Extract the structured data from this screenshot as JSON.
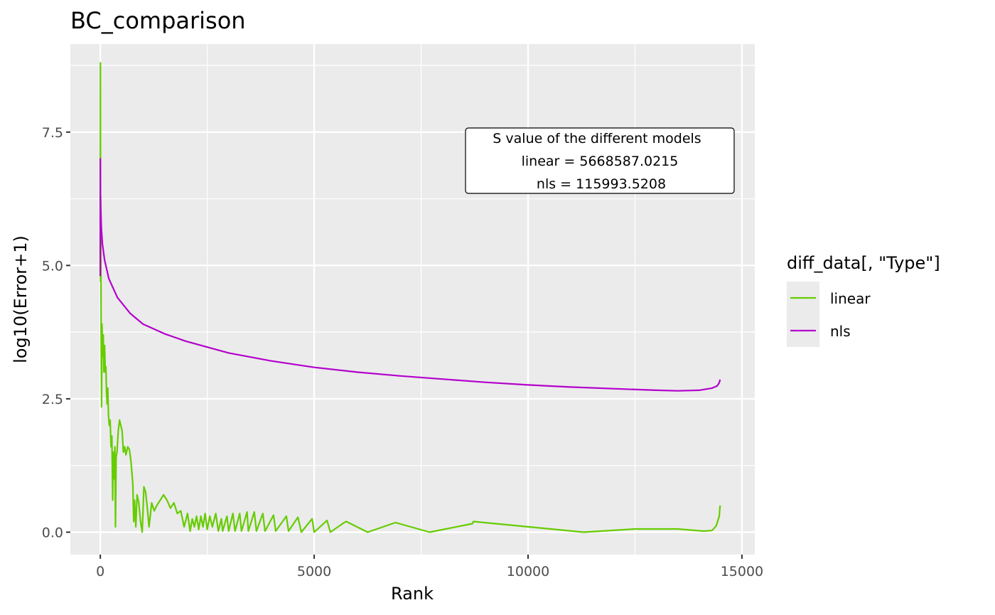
{
  "chart_data": {
    "type": "line",
    "title": "BC_comparison",
    "xlabel": "Rank",
    "ylabel": "log10(Error+1)",
    "xlim": [
      -700,
      15300
    ],
    "ylim": [
      -0.42,
      9.15
    ],
    "x_ticks": [
      0,
      5000,
      10000,
      15000
    ],
    "x_tick_labels": [
      "0",
      "5000",
      "10000",
      "15000"
    ],
    "y_ticks": [
      0.0,
      2.5,
      5.0,
      7.5
    ],
    "y_tick_labels": [
      "0.0",
      "2.5",
      "5.0",
      "7.5"
    ],
    "grid": true,
    "legend": {
      "title": "diff_data[, \"Type\"]",
      "position": "right"
    },
    "annotation": {
      "lines": [
        "S  value of the different models",
        "linear = 5668587.0215",
        "nls = 115993.5208"
      ]
    },
    "series": [
      {
        "name": "linear",
        "color": "#66CC00",
        "points": [
          [
            0,
            4.8
          ],
          [
            3,
            8.8
          ],
          [
            6,
            4.7
          ],
          [
            10,
            6.3
          ],
          [
            20,
            3.6
          ],
          [
            30,
            2.35
          ],
          [
            40,
            3.9
          ],
          [
            55,
            3.3
          ],
          [
            70,
            3.7
          ],
          [
            85,
            3.0
          ],
          [
            100,
            3.5
          ],
          [
            115,
            3.0
          ],
          [
            130,
            3.1
          ],
          [
            145,
            2.6
          ],
          [
            160,
            2.4
          ],
          [
            175,
            2.7
          ],
          [
            190,
            2.2
          ],
          [
            210,
            2.0
          ],
          [
            230,
            2.1
          ],
          [
            250,
            1.6
          ],
          [
            270,
            1.8
          ],
          [
            290,
            0.6
          ],
          [
            300,
            1.5
          ],
          [
            320,
            1.0
          ],
          [
            340,
            1.6
          ],
          [
            355,
            0.1
          ],
          [
            370,
            1.4
          ],
          [
            390,
            1.5
          ],
          [
            420,
            1.9
          ],
          [
            450,
            2.1
          ],
          [
            480,
            2.0
          ],
          [
            510,
            1.9
          ],
          [
            540,
            1.5
          ],
          [
            570,
            1.6
          ],
          [
            600,
            1.45
          ],
          [
            640,
            1.6
          ],
          [
            680,
            1.55
          ],
          [
            720,
            1.3
          ],
          [
            760,
            0.9
          ],
          [
            780,
            0.2
          ],
          [
            800,
            0.6
          ],
          [
            830,
            0.1
          ],
          [
            860,
            0.7
          ],
          [
            900,
            0.55
          ],
          [
            940,
            0.2
          ],
          [
            980,
            0.0
          ],
          [
            1020,
            0.85
          ],
          [
            1060,
            0.75
          ],
          [
            1100,
            0.45
          ],
          [
            1140,
            0.1
          ],
          [
            1200,
            0.55
          ],
          [
            1260,
            0.4
          ],
          [
            1320,
            0.5
          ],
          [
            1400,
            0.6
          ],
          [
            1480,
            0.7
          ],
          [
            1560,
            0.6
          ],
          [
            1640,
            0.45
          ],
          [
            1720,
            0.55
          ],
          [
            1800,
            0.35
          ],
          [
            1880,
            0.4
          ],
          [
            1960,
            0.1
          ],
          [
            2040,
            0.35
          ],
          [
            2100,
            0.02
          ],
          [
            2150,
            0.25
          ],
          [
            2200,
            0.1
          ],
          [
            2250,
            0.3
          ],
          [
            2300,
            0.05
          ],
          [
            2350,
            0.3
          ],
          [
            2400,
            0.1
          ],
          [
            2450,
            0.35
          ],
          [
            2500,
            0.05
          ],
          [
            2560,
            0.3
          ],
          [
            2620,
            0.1
          ],
          [
            2700,
            0.35
          ],
          [
            2760,
            0.02
          ],
          [
            2830,
            0.25
          ],
          [
            2860,
            0.02
          ],
          [
            2960,
            0.3
          ],
          [
            3000,
            0.02
          ],
          [
            3100,
            0.35
          ],
          [
            3150,
            0.02
          ],
          [
            3260,
            0.35
          ],
          [
            3300,
            0.02
          ],
          [
            3430,
            0.38
          ],
          [
            3460,
            0.02
          ],
          [
            3600,
            0.38
          ],
          [
            3650,
            0.02
          ],
          [
            3800,
            0.35
          ],
          [
            3850,
            0.02
          ],
          [
            4050,
            0.32
          ],
          [
            4100,
            0.02
          ],
          [
            4350,
            0.3
          ],
          [
            4400,
            0.02
          ],
          [
            4620,
            0.28
          ],
          [
            4700,
            0.0
          ],
          [
            4950,
            0.25
          ],
          [
            5000,
            0.0
          ],
          [
            5300,
            0.22
          ],
          [
            5380,
            0.0
          ],
          [
            5700,
            0.18
          ],
          [
            5750,
            0.2
          ],
          [
            6250,
            0.0
          ],
          [
            6900,
            0.18
          ],
          [
            7700,
            0.0
          ],
          [
            8700,
            0.16
          ],
          [
            8720,
            0.2
          ],
          [
            11300,
            0.0
          ],
          [
            12500,
            0.06
          ],
          [
            13500,
            0.06
          ],
          [
            14100,
            0.02
          ],
          [
            14300,
            0.03
          ],
          [
            14400,
            0.12
          ],
          [
            14470,
            0.3
          ],
          [
            14490,
            0.5
          ]
        ]
      },
      {
        "name": "nls",
        "color": "#B300CC",
        "points": [
          [
            0,
            4.8
          ],
          [
            1,
            7.0
          ],
          [
            3,
            6.3
          ],
          [
            10,
            6.1
          ],
          [
            25,
            5.7
          ],
          [
            50,
            5.4
          ],
          [
            100,
            5.1
          ],
          [
            200,
            4.75
          ],
          [
            400,
            4.4
          ],
          [
            700,
            4.1
          ],
          [
            1000,
            3.9
          ],
          [
            1500,
            3.72
          ],
          [
            2000,
            3.58
          ],
          [
            3000,
            3.36
          ],
          [
            4000,
            3.21
          ],
          [
            5000,
            3.09
          ],
          [
            6000,
            3.0
          ],
          [
            7000,
            2.93
          ],
          [
            8000,
            2.87
          ],
          [
            9000,
            2.81
          ],
          [
            10000,
            2.76
          ],
          [
            11000,
            2.72
          ],
          [
            12000,
            2.69
          ],
          [
            13000,
            2.66
          ],
          [
            13500,
            2.65
          ],
          [
            14000,
            2.66
          ],
          [
            14300,
            2.7
          ],
          [
            14420,
            2.74
          ],
          [
            14470,
            2.8
          ],
          [
            14490,
            2.86
          ]
        ]
      }
    ]
  }
}
